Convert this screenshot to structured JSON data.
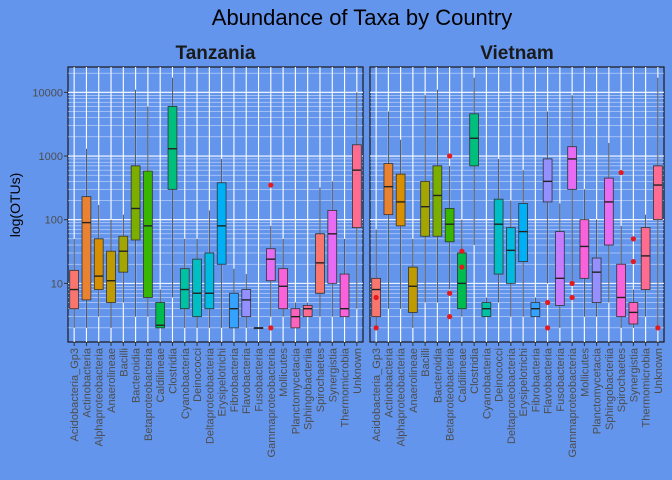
{
  "chart_data": {
    "type": "boxplot",
    "title": "Abundance of Taxa by Country",
    "ylabel": "log(OTUs)",
    "xlabel": "",
    "yscale": "log10",
    "ylim": [
      1.2,
      25000
    ],
    "yticks": [
      10,
      100,
      1000,
      10000
    ],
    "ytick_labels": [
      "10",
      "100",
      "1000",
      "10000"
    ],
    "grid": true,
    "outlier_color": "#E41A1C",
    "panels": [
      {
        "label": "Tanzania",
        "categories": [
          "Acidobacteria_Gp3",
          "Actinobacteria",
          "Alphaproteobacteria",
          "Anaerolineae",
          "Bacilli",
          "Bacteroidia",
          "Betaproteobacteria",
          "Caldilineae",
          "Clostridia",
          "Cyanobacteria",
          "Deinococci",
          "Deltaproteobacteria",
          "Erysipelotrichi",
          "Fibrobacteria",
          "Flavobacteria",
          "Fusobacteria",
          "Gammaproteobacteria",
          "Mollicutes",
          "Planctomycetacia",
          "Sphingobacteriia",
          "Spirochaetes",
          "Synergistia",
          "Thermomicrobia",
          "Unknown"
        ],
        "boxes": [
          {
            "min": 2,
            "q1": 4,
            "median": 8,
            "q3": 16,
            "max": 50,
            "outliers": [],
            "color": "#F8766D"
          },
          {
            "min": 2,
            "q1": 5.5,
            "median": 90,
            "q3": 230,
            "max": 1300,
            "outliers": [],
            "color": "#EA8331"
          },
          {
            "min": 3,
            "q1": 8,
            "median": 13,
            "q3": 50,
            "max": 170,
            "outliers": [],
            "color": "#D89000"
          },
          {
            "min": 2,
            "q1": 5,
            "median": 11,
            "q3": 32,
            "max": 100,
            "outliers": [],
            "color": "#C09B00"
          },
          {
            "min": 5,
            "q1": 15,
            "median": 32,
            "q3": 55,
            "max": 120,
            "outliers": [],
            "color": "#A3A500"
          },
          {
            "min": 3,
            "q1": 48,
            "median": 150,
            "q3": 700,
            "max": 11000,
            "outliers": [],
            "color": "#7CAE00"
          },
          {
            "min": 3,
            "q1": 6,
            "median": 80,
            "q3": 580,
            "max": 6000,
            "outliers": [],
            "color": "#39B600"
          },
          {
            "min": 2,
            "q1": 2,
            "median": 2.2,
            "q3": 5,
            "max": 8,
            "outliers": [],
            "color": "#00BB4E"
          },
          {
            "min": 6,
            "q1": 300,
            "median": 1300,
            "q3": 6000,
            "max": 17000,
            "outliers": [],
            "color": "#00BF7D"
          },
          {
            "min": 2,
            "q1": 4,
            "median": 8,
            "q3": 17,
            "max": 50,
            "outliers": [],
            "color": "#00C1A3"
          },
          {
            "min": 2,
            "q1": 3,
            "median": 7,
            "q3": 24,
            "max": 50,
            "outliers": [],
            "color": "#00BFC4"
          },
          {
            "min": 2,
            "q1": 4,
            "median": 7,
            "q3": 30,
            "max": 140,
            "outliers": [],
            "color": "#00BAE0"
          },
          {
            "min": 2,
            "q1": 20,
            "median": 80,
            "q3": 380,
            "max": 900,
            "outliers": [],
            "color": "#00B0F6"
          },
          {
            "min": 2,
            "q1": 2,
            "median": 4,
            "q3": 7,
            "max": 17,
            "outliers": [],
            "color": "#35A2FF"
          },
          {
            "min": 2,
            "q1": 3,
            "median": 5.5,
            "q3": 8,
            "max": 14,
            "outliers": [],
            "color": "#9590FF"
          },
          {
            "min": 2,
            "q1": 2,
            "median": 2,
            "q3": 2,
            "max": 2,
            "outliers": [],
            "color": "#C77CFF"
          },
          {
            "min": 3,
            "q1": 11,
            "median": 24,
            "q3": 35,
            "max": 80,
            "outliers": [
              350,
              2
            ],
            "color": "#E76BF3"
          },
          {
            "min": 3,
            "q1": 4,
            "median": 9,
            "q3": 17,
            "max": 50,
            "outliers": [],
            "color": "#FA62DB"
          },
          {
            "min": 2,
            "q1": 2,
            "median": 3,
            "q3": 4,
            "max": 5,
            "outliers": [],
            "color": "#FF62BC"
          },
          {
            "min": 3,
            "q1": 3,
            "median": 4,
            "q3": 4.5,
            "max": 5,
            "outliers": [],
            "color": "#FF6C91"
          },
          {
            "min": 3,
            "q1": 7,
            "median": 21,
            "q3": 60,
            "max": 320,
            "outliers": [],
            "color": "#F8766D"
          },
          {
            "min": 3,
            "q1": 10,
            "median": 60,
            "q3": 140,
            "max": 400,
            "outliers": [],
            "color": "#E76BF3"
          },
          {
            "min": 3,
            "q1": 3,
            "median": 4,
            "q3": 14,
            "max": 50,
            "outliers": [],
            "color": "#FA62DB"
          },
          {
            "min": 4,
            "q1": 75,
            "median": 600,
            "q3": 1500,
            "max": 10000,
            "outliers": [],
            "color": "#FF6C91"
          }
        ]
      },
      {
        "label": "Vietnam",
        "categories": [
          "Acidobacteria_Gp3",
          "Actinobacteria",
          "Alphaproteobacteria",
          "Anaerolineae",
          "Bacilli",
          "Bacteroidia",
          "Betaproteobacteria",
          "Caldilineae",
          "Clostridia",
          "Cyanobacteria",
          "Deinococci",
          "Deltaproteobacteria",
          "Erysipelotrichi",
          "Fibrobacteria",
          "Flavobacteria",
          "Fusobacteria",
          "Gammaproteobacteria",
          "Mollicutes",
          "Planctomycetacia",
          "Sphingobacteriia",
          "Spirochaetes",
          "Synergistia",
          "Thermomicrobia",
          "Unknown"
        ],
        "boxes": [
          {
            "min": 2,
            "q1": 3,
            "median": 8,
            "q3": 12,
            "max": 70,
            "outliers": [
              6,
              2
            ],
            "color": "#F8766D"
          },
          {
            "min": 4,
            "q1": 120,
            "median": 330,
            "q3": 760,
            "max": 5000,
            "outliers": [],
            "color": "#EA8331"
          },
          {
            "min": 4,
            "q1": 80,
            "median": 190,
            "q3": 520,
            "max": 1800,
            "outliers": [],
            "color": "#D89000"
          },
          {
            "min": 2,
            "q1": 3.5,
            "median": 9,
            "q3": 18,
            "max": 50,
            "outliers": [],
            "color": "#C09B00"
          },
          {
            "min": 5,
            "q1": 55,
            "median": 160,
            "q3": 400,
            "max": 9000,
            "outliers": [],
            "color": "#A3A500"
          },
          {
            "min": 5,
            "q1": 55,
            "median": 240,
            "q3": 700,
            "max": 11000,
            "outliers": [],
            "color": "#7CAE00"
          },
          {
            "min": 8,
            "q1": 45,
            "median": 85,
            "q3": 150,
            "max": 700,
            "outliers": [
              1000,
              7,
              3
            ],
            "color": "#39B600"
          },
          {
            "min": 3,
            "q1": 4,
            "median": 10,
            "q3": 30,
            "max": 100,
            "outliers": [
              32,
              18
            ],
            "color": "#00BB4E"
          },
          {
            "min": 40,
            "q1": 700,
            "median": 1900,
            "q3": 4600,
            "max": 17000,
            "outliers": [],
            "color": "#00BF7D"
          },
          {
            "min": 3,
            "q1": 3,
            "median": 4,
            "q3": 5,
            "max": 6,
            "outliers": [],
            "color": "#00C1A3"
          },
          {
            "min": 5,
            "q1": 14,
            "median": 85,
            "q3": 210,
            "max": 900,
            "outliers": [],
            "color": "#00BFC4"
          },
          {
            "min": 3,
            "q1": 10,
            "median": 33,
            "q3": 75,
            "max": 200,
            "outliers": [],
            "color": "#00BAE0"
          },
          {
            "min": 3,
            "q1": 22,
            "median": 65,
            "q3": 180,
            "max": 600,
            "outliers": [],
            "color": "#00B0F6"
          },
          {
            "min": 3,
            "q1": 3,
            "median": 4,
            "q3": 5,
            "max": 6,
            "outliers": [],
            "color": "#35A2FF"
          },
          {
            "min": 10,
            "q1": 190,
            "median": 400,
            "q3": 900,
            "max": 5000,
            "outliers": [
              5,
              2
            ],
            "color": "#9590FF"
          },
          {
            "min": 2,
            "q1": 4.5,
            "median": 12,
            "q3": 65,
            "max": 180,
            "outliers": [],
            "color": "#C77CFF"
          },
          {
            "min": 11,
            "q1": 300,
            "median": 900,
            "q3": 1400,
            "max": 9000,
            "outliers": [
              10,
              6
            ],
            "color": "#E76BF3"
          },
          {
            "min": 3,
            "q1": 12,
            "median": 38,
            "q3": 100,
            "max": 300,
            "outliers": [],
            "color": "#FA62DB"
          },
          {
            "min": 3,
            "q1": 5,
            "median": 15,
            "q3": 25,
            "max": 100,
            "outliers": [],
            "color": "#9590FF"
          },
          {
            "min": 5,
            "q1": 40,
            "median": 190,
            "q3": 450,
            "max": 1600,
            "outliers": [],
            "color": "#E76BF3"
          },
          {
            "min": 2,
            "q1": 3,
            "median": 6,
            "q3": 20,
            "max": 80,
            "outliers": [
              550
            ],
            "color": "#FA62DB"
          },
          {
            "min": 2,
            "q1": 2.3,
            "median": 3.5,
            "q3": 5,
            "max": 8,
            "outliers": [
              50,
              22
            ],
            "color": "#FF62BC"
          },
          {
            "min": 3,
            "q1": 8,
            "median": 27,
            "q3": 75,
            "max": 120,
            "outliers": [],
            "color": "#FF6C91"
          },
          {
            "min": 2,
            "q1": 100,
            "median": 350,
            "q3": 700,
            "max": 17000,
            "outliers": [
              2
            ],
            "color": "#FF6C91"
          }
        ]
      }
    ]
  }
}
